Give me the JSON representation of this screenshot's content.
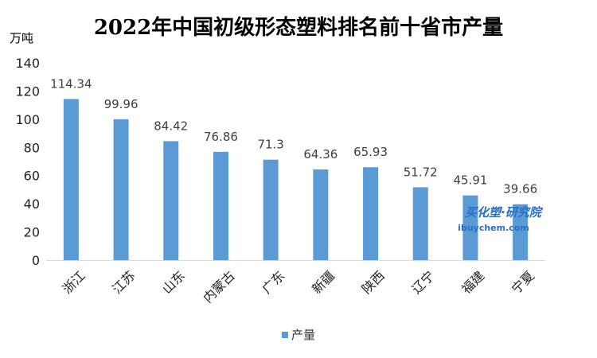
{
  "chart_data": {
    "type": "bar",
    "title": "2022年中国初级形态塑料排名前十省市产量",
    "ylabel": "万吨",
    "ylim": [
      0,
      140
    ],
    "yticks": [
      0,
      20,
      40,
      60,
      80,
      100,
      120,
      140
    ],
    "grid": false,
    "legend_position": "bottom",
    "categories": [
      "浙江",
      "江苏",
      "山东",
      "内蒙古",
      "广东",
      "新疆",
      "陕西",
      "辽宁",
      "福建",
      "宁夏"
    ],
    "series": [
      {
        "name": "产量",
        "color": "#5b9bd5",
        "values": [
          114.34,
          99.96,
          84.42,
          76.86,
          71.3,
          64.36,
          65.93,
          51.72,
          45.91,
          39.66
        ],
        "labels": [
          "114.34",
          "99.96",
          "84.42",
          "76.86",
          "71.3",
          "64.36",
          "65.93",
          "51.72",
          "45.91",
          "39.66"
        ]
      }
    ]
  },
  "watermark": {
    "line1": "买化塑·研究院",
    "line2": "ibuychem.com"
  }
}
